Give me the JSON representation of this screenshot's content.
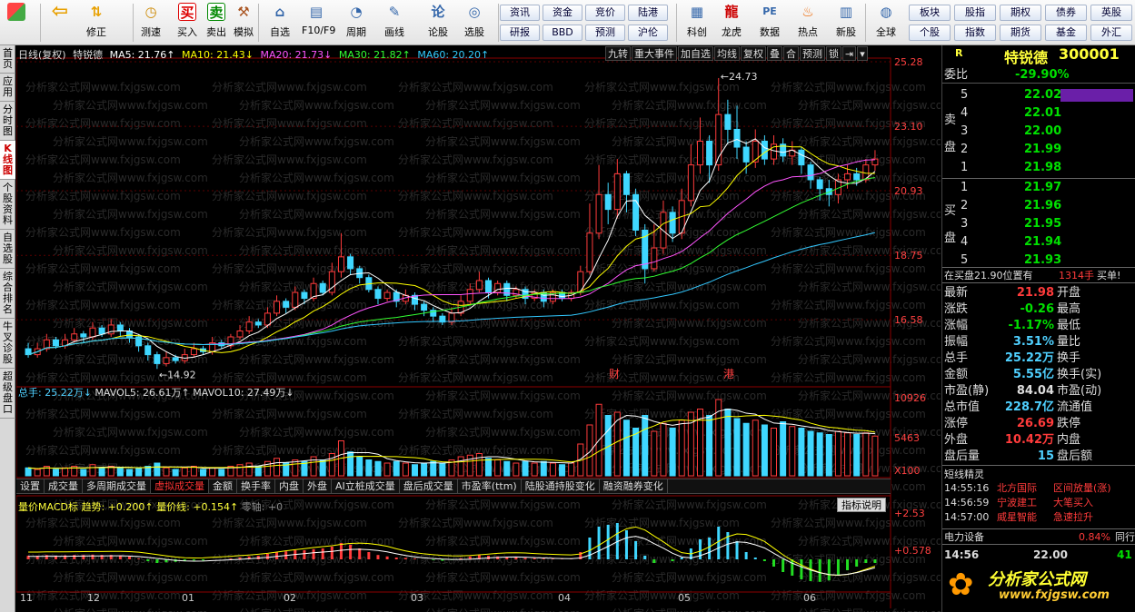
{
  "toolbar": {
    "buttons": [
      {
        "label": "",
        "icon": "grid-icon"
      },
      {
        "label": "",
        "icon": "back-arrow-icon"
      },
      {
        "label": "修正",
        "icon": "up-down-arrow-icon"
      },
      {
        "label": "测速",
        "icon": "clock-icon"
      },
      {
        "label": "买入",
        "icon": "buy-icon",
        "glyph": "买"
      },
      {
        "label": "卖出",
        "icon": "sell-icon",
        "glyph": "卖"
      },
      {
        "label": "模拟",
        "icon": "hammer-icon"
      },
      {
        "label": "自选",
        "icon": "house-icon"
      },
      {
        "label": "F10/F9",
        "icon": "f10-icon"
      },
      {
        "label": "周期",
        "icon": "period-icon"
      },
      {
        "label": "画线",
        "icon": "pencil-icon"
      },
      {
        "label": "论股",
        "icon": "discuss-icon"
      },
      {
        "label": "选股",
        "icon": "select-stock-icon"
      }
    ],
    "pills_row1": [
      "资讯",
      "资金",
      "竞价",
      "陆港"
    ],
    "pills_row2": [
      "研报",
      "BBD",
      "预测",
      "沪伦"
    ],
    "big_buttons": [
      {
        "label": "科创",
        "icon": "chart-icon"
      },
      {
        "label": "龙虎",
        "icon": "dragon-icon"
      },
      {
        "label": "数据",
        "icon": "pe-icon",
        "glyph": "PE"
      },
      {
        "label": "热点",
        "icon": "fire-icon"
      },
      {
        "label": "新股",
        "icon": "ipo-icon"
      },
      {
        "label": "全球",
        "icon": "globe-icon"
      }
    ],
    "pills_right_row1": [
      "板块",
      "股指",
      "期权",
      "债券",
      "英股"
    ],
    "pills_right_row2": [
      "个股",
      "指数",
      "期货",
      "基金",
      "外汇"
    ]
  },
  "left_tabs": [
    {
      "label": "首页"
    },
    {
      "label": "应用"
    },
    {
      "label": "分时图"
    },
    {
      "label": "K线图",
      "active": true
    },
    {
      "label": "个股资料"
    },
    {
      "label": "自选股"
    },
    {
      "label": "综合排名"
    },
    {
      "label": "牛叉诊股"
    },
    {
      "label": "超级盘口"
    }
  ],
  "chart_header": {
    "period": "日线(复权)",
    "stock": "特锐德",
    "ma5": "MA5: 21.76↑",
    "ma10": "MA10: 21.43↓",
    "ma20": "MA20: 21.73↓",
    "ma30": "MA30: 21.82↑",
    "ma60": "MA60: 20.20↑",
    "buttons": [
      "九转",
      "重大事件",
      "加自选",
      "均线",
      "复权",
      "叠",
      "合",
      "预测",
      "锁",
      "⇥",
      "▾"
    ]
  },
  "colors": {
    "ma5": "#ffffff",
    "ma10": "#ffff00",
    "ma20": "#ff55ff",
    "ma30": "#33ff33",
    "ma60": "#33c8ff",
    "up": "#ff3b3b",
    "down": "#3fd7ff",
    "grid": "#5a0000"
  },
  "price_axis": [
    "25.28",
    "23.10",
    "20.93",
    "18.75",
    "16.58"
  ],
  "annotations": {
    "high": "24.73",
    "low": "14.92",
    "cai": "财",
    "gang": "港"
  },
  "volume_header": {
    "total": "总手: 25.22万↓",
    "mavol5": "MAVOL5: 26.61万↑",
    "mavol10": "MAVOL10: 27.49万↓"
  },
  "volume_axis": [
    "10926",
    "5463",
    "X100"
  ],
  "sub_tabs": [
    "设置",
    "成交量",
    "多周期成交量",
    "虚拟成交量",
    "金额",
    "换手率",
    "内盘",
    "外盘",
    "AI立桩成交量",
    "盘后成交量",
    "市盈率(ttm)",
    "陆股通持股变化",
    "融资融券变化"
  ],
  "active_sub_tab": "虚拟成交量",
  "macd_header": {
    "name": "量价MACD标",
    "trend": "趋势: +0.200↑",
    "qj": "量价线: +0.154↑",
    "zero": "零轴: +0"
  },
  "macd_axis": [
    "+2.53",
    "+0.578"
  ],
  "indicator_button": "指标说明",
  "date_axis": [
    "11",
    "12",
    "01",
    "02",
    "03",
    "04",
    "05",
    "06"
  ],
  "chart_data": {
    "type": "candlestick",
    "title": "特锐德",
    "ylim": [
      14.5,
      25.28
    ],
    "candles": [
      [
        15.6,
        15.4,
        15.8,
        15.3
      ],
      [
        15.4,
        15.6,
        15.8,
        15.3
      ],
      [
        15.6,
        15.9,
        16.1,
        15.5
      ],
      [
        15.9,
        15.7,
        16.0,
        15.6
      ],
      [
        15.7,
        15.9,
        16.1,
        15.6
      ],
      [
        15.9,
        16.1,
        16.3,
        15.8
      ],
      [
        16.1,
        16.0,
        16.2,
        15.8
      ],
      [
        16.0,
        16.3,
        16.5,
        15.9
      ],
      [
        16.3,
        16.1,
        16.4,
        16.0
      ],
      [
        16.1,
        16.4,
        16.6,
        16.0
      ],
      [
        16.4,
        16.2,
        16.5,
        16.0
      ],
      [
        16.2,
        16.0,
        16.3,
        15.8
      ],
      [
        16.0,
        15.7,
        16.1,
        15.5
      ],
      [
        15.7,
        15.4,
        15.8,
        15.2
      ],
      [
        15.4,
        15.1,
        15.5,
        14.92
      ],
      [
        15.1,
        15.3,
        15.5,
        15.0
      ],
      [
        15.3,
        15.2,
        15.4,
        15.1
      ],
      [
        15.2,
        15.4,
        15.6,
        15.1
      ],
      [
        15.4,
        15.6,
        15.8,
        15.3
      ],
      [
        15.6,
        15.5,
        15.7,
        15.4
      ],
      [
        15.5,
        15.8,
        16.0,
        15.4
      ],
      [
        15.8,
        15.7,
        15.9,
        15.6
      ],
      [
        15.7,
        16.0,
        16.1,
        15.6
      ],
      [
        16.0,
        16.2,
        16.4,
        15.9
      ],
      [
        16.2,
        16.5,
        16.7,
        16.1
      ],
      [
        16.5,
        16.4,
        16.6,
        16.3
      ],
      [
        16.4,
        16.8,
        17.0,
        16.3
      ],
      [
        16.8,
        17.2,
        17.4,
        16.7
      ],
      [
        17.2,
        17.0,
        17.3,
        16.8
      ],
      [
        17.0,
        17.5,
        17.7,
        16.9
      ],
      [
        17.5,
        17.3,
        17.6,
        17.1
      ],
      [
        17.3,
        17.8,
        18.0,
        17.2
      ],
      [
        17.8,
        17.5,
        17.9,
        17.4
      ],
      [
        17.5,
        18.2,
        18.5,
        17.4
      ],
      [
        18.2,
        18.7,
        19.5,
        18.0
      ],
      [
        18.7,
        18.3,
        18.8,
        18.1
      ],
      [
        18.3,
        18.0,
        18.4,
        17.8
      ],
      [
        18.0,
        17.6,
        18.1,
        17.5
      ],
      [
        17.6,
        17.3,
        17.7,
        17.1
      ],
      [
        17.3,
        17.5,
        17.6,
        17.2
      ],
      [
        17.5,
        17.2,
        17.6,
        17.0
      ],
      [
        17.2,
        17.4,
        17.6,
        17.1
      ],
      [
        17.4,
        17.1,
        17.5,
        16.9
      ],
      [
        17.1,
        16.9,
        17.2,
        16.7
      ],
      [
        16.9,
        16.7,
        17.0,
        16.5
      ],
      [
        16.7,
        16.5,
        16.8,
        16.4
      ],
      [
        16.5,
        16.8,
        17.0,
        16.4
      ],
      [
        16.8,
        17.2,
        17.4,
        16.7
      ],
      [
        17.2,
        17.6,
        17.8,
        17.1
      ],
      [
        17.6,
        17.9,
        18.2,
        17.5
      ],
      [
        17.9,
        17.5,
        18.0,
        17.3
      ],
      [
        17.5,
        17.8,
        17.9,
        17.4
      ],
      [
        17.8,
        17.4,
        17.9,
        17.2
      ],
      [
        17.4,
        17.6,
        17.7,
        17.3
      ],
      [
        17.6,
        17.3,
        17.7,
        17.1
      ],
      [
        17.3,
        17.5,
        17.6,
        17.2
      ],
      [
        17.5,
        17.2,
        17.6,
        17.0
      ],
      [
        17.2,
        17.5,
        17.6,
        17.1
      ],
      [
        17.5,
        17.3,
        17.6,
        17.2
      ],
      [
        17.3,
        17.5,
        17.6,
        17.2
      ],
      [
        17.5,
        18.2,
        18.4,
        17.4
      ],
      [
        18.2,
        19.5,
        20.5,
        18.1
      ],
      [
        19.5,
        20.8,
        21.8,
        19.3
      ],
      [
        20.8,
        20.3,
        21.2,
        19.8
      ],
      [
        20.3,
        21.5,
        22.0,
        20.0
      ],
      [
        21.5,
        20.8,
        21.6,
        20.2
      ],
      [
        20.8,
        19.6,
        21.0,
        19.4
      ],
      [
        19.6,
        18.3,
        19.8,
        17.8
      ],
      [
        18.3,
        19.0,
        19.8,
        18.2
      ],
      [
        19.0,
        20.2,
        20.6,
        18.8
      ],
      [
        20.2,
        19.5,
        20.4,
        19.2
      ],
      [
        19.5,
        20.6,
        21.0,
        19.3
      ],
      [
        20.6,
        21.8,
        22.5,
        20.4
      ],
      [
        21.8,
        22.6,
        23.4,
        21.5
      ],
      [
        22.6,
        21.8,
        22.8,
        21.2
      ],
      [
        21.8,
        23.5,
        24.73,
        21.6
      ],
      [
        23.5,
        23.0,
        24.0,
        22.5
      ],
      [
        23.0,
        22.4,
        23.8,
        22.0
      ],
      [
        22.4,
        21.9,
        22.6,
        21.5
      ],
      [
        21.9,
        22.6,
        23.0,
        21.7
      ],
      [
        22.6,
        22.0,
        22.8,
        21.8
      ],
      [
        22.0,
        22.5,
        22.8,
        21.8
      ],
      [
        22.5,
        22.1,
        22.7,
        21.9
      ],
      [
        22.1,
        22.3,
        22.6,
        21.8
      ],
      [
        22.3,
        21.8,
        22.4,
        21.5
      ],
      [
        21.8,
        21.3,
        21.9,
        21.0
      ],
      [
        21.3,
        21.0,
        21.4,
        20.6
      ],
      [
        21.0,
        20.8,
        21.3,
        20.4
      ],
      [
        20.8,
        21.3,
        21.5,
        20.5
      ],
      [
        21.3,
        21.5,
        21.8,
        21.0
      ],
      [
        21.5,
        21.3,
        21.7,
        21.1
      ],
      [
        21.3,
        21.8,
        22.0,
        21.2
      ],
      [
        21.8,
        22.0,
        22.3,
        21.6
      ]
    ],
    "volume": [
      5,
      4,
      6,
      4,
      5,
      6,
      4,
      7,
      5,
      6,
      5,
      4,
      5,
      6,
      8,
      5,
      4,
      5,
      6,
      4,
      5,
      4,
      6,
      7,
      8,
      6,
      9,
      11,
      8,
      10,
      9,
      12,
      10,
      14,
      22,
      15,
      12,
      10,
      9,
      8,
      9,
      8,
      7,
      8,
      9,
      8,
      10,
      12,
      13,
      14,
      11,
      10,
      9,
      8,
      9,
      8,
      9,
      8,
      7,
      8,
      20,
      32,
      45,
      38,
      40,
      35,
      30,
      38,
      28,
      33,
      30,
      35,
      40,
      42,
      38,
      48,
      42,
      36,
      33,
      35,
      32,
      30,
      34,
      31,
      30,
      28,
      27,
      26,
      28,
      27,
      26,
      27,
      25
    ],
    "macd": [
      0.1,
      0.1,
      0.12,
      0.1,
      0.11,
      0.12,
      0.12,
      0.13,
      0.12,
      0.12,
      0.11,
      0.08,
      0.02,
      -0.05,
      -0.1,
      -0.08,
      -0.07,
      -0.05,
      -0.03,
      -0.03,
      0.0,
      0.0,
      0.02,
      0.05,
      0.08,
      0.1,
      0.15,
      0.2,
      0.22,
      0.25,
      0.25,
      0.28,
      0.3,
      0.35,
      0.45,
      0.4,
      0.3,
      0.2,
      0.12,
      0.08,
      0.05,
      0.04,
      0.02,
      0.0,
      -0.02,
      -0.04,
      -0.02,
      0.03,
      0.08,
      0.12,
      0.1,
      0.08,
      0.06,
      0.05,
      0.04,
      0.03,
      0.02,
      0.02,
      0.01,
      0.01,
      0.2,
      0.6,
      0.9,
      0.95,
      1.0,
      0.8,
      0.5,
      0.1,
      -0.1,
      0.0,
      -0.05,
      0.05,
      0.3,
      0.55,
      0.6,
      0.9,
      0.75,
      0.5,
      0.2,
      0.05,
      -0.05,
      -0.2,
      -0.35,
      -0.45,
      -0.55,
      -0.6,
      -0.62,
      -0.58,
      -0.45,
      -0.3,
      -0.2,
      -0.1,
      -0.1
    ]
  },
  "right_panel": {
    "name": "特锐德",
    "code": "300001",
    "r": "R",
    "wei_bi_label": "委比",
    "wei_bi": "-29.90%",
    "sell_label": "卖盘",
    "buy_label": "买盘",
    "sell": [
      {
        "n": "5",
        "p": "22.02"
      },
      {
        "n": "4",
        "p": "22.01"
      },
      {
        "n": "3",
        "p": "22.00"
      },
      {
        "n": "2",
        "p": "21.99"
      },
      {
        "n": "1",
        "p": "21.98"
      }
    ],
    "buy": [
      {
        "n": "1",
        "p": "21.97"
      },
      {
        "n": "2",
        "p": "21.96"
      },
      {
        "n": "3",
        "p": "21.95"
      },
      {
        "n": "4",
        "p": "21.94"
      },
      {
        "n": "5",
        "p": "21.93"
      }
    ],
    "alert_prefix": "在买盘21.90位置有",
    "alert_volume": "1314手",
    "alert_suffix": "买单!",
    "quotes": [
      {
        "l": "最新",
        "v": "21.98",
        "c": "red",
        "r": "开盘"
      },
      {
        "l": "涨跌",
        "v": "-0.26",
        "c": "green",
        "r": "最高"
      },
      {
        "l": "涨幅",
        "v": "-1.17%",
        "c": "green",
        "r": "最低"
      },
      {
        "l": "振幅",
        "v": "3.51%",
        "c": "cyan",
        "r": "量比"
      },
      {
        "l": "总手",
        "v": "25.22万",
        "c": "cyan",
        "r": "换手"
      },
      {
        "l": "金额",
        "v": "5.55亿",
        "c": "cyan",
        "r": "换手(实)"
      },
      {
        "l": "市盈(静)",
        "v": "84.04",
        "c": "white",
        "r": "市盈(动)"
      },
      {
        "l": "总市值",
        "v": "228.7亿",
        "c": "cyan",
        "r": "流通值"
      },
      {
        "l": "涨停",
        "v": "26.69",
        "c": "red",
        "r": "跌停"
      },
      {
        "l": "外盘",
        "v": "10.42万",
        "c": "red",
        "r": "内盘"
      },
      {
        "l": "盘后量",
        "v": "15",
        "c": "cyan",
        "r": "盘后额"
      }
    ],
    "elves_title": "短线精灵",
    "elves": [
      {
        "t": "14:55:16",
        "n": "北方国际",
        "e": "区间放量(涨)"
      },
      {
        "t": "14:56:59",
        "n": "宁波建工",
        "e": "大笔买入"
      },
      {
        "t": "14:57:00",
        "n": "威星智能",
        "e": "急速拉升"
      }
    ],
    "sector_name": "电力设备",
    "sector_pct": "0.84%",
    "sector_right": "同行",
    "tick_time": "14:56",
    "tick_price": "22.00",
    "tick_vol": "41"
  },
  "watermark": {
    "text": "分析家公式网",
    "url": "www.fxjgsw.com"
  }
}
